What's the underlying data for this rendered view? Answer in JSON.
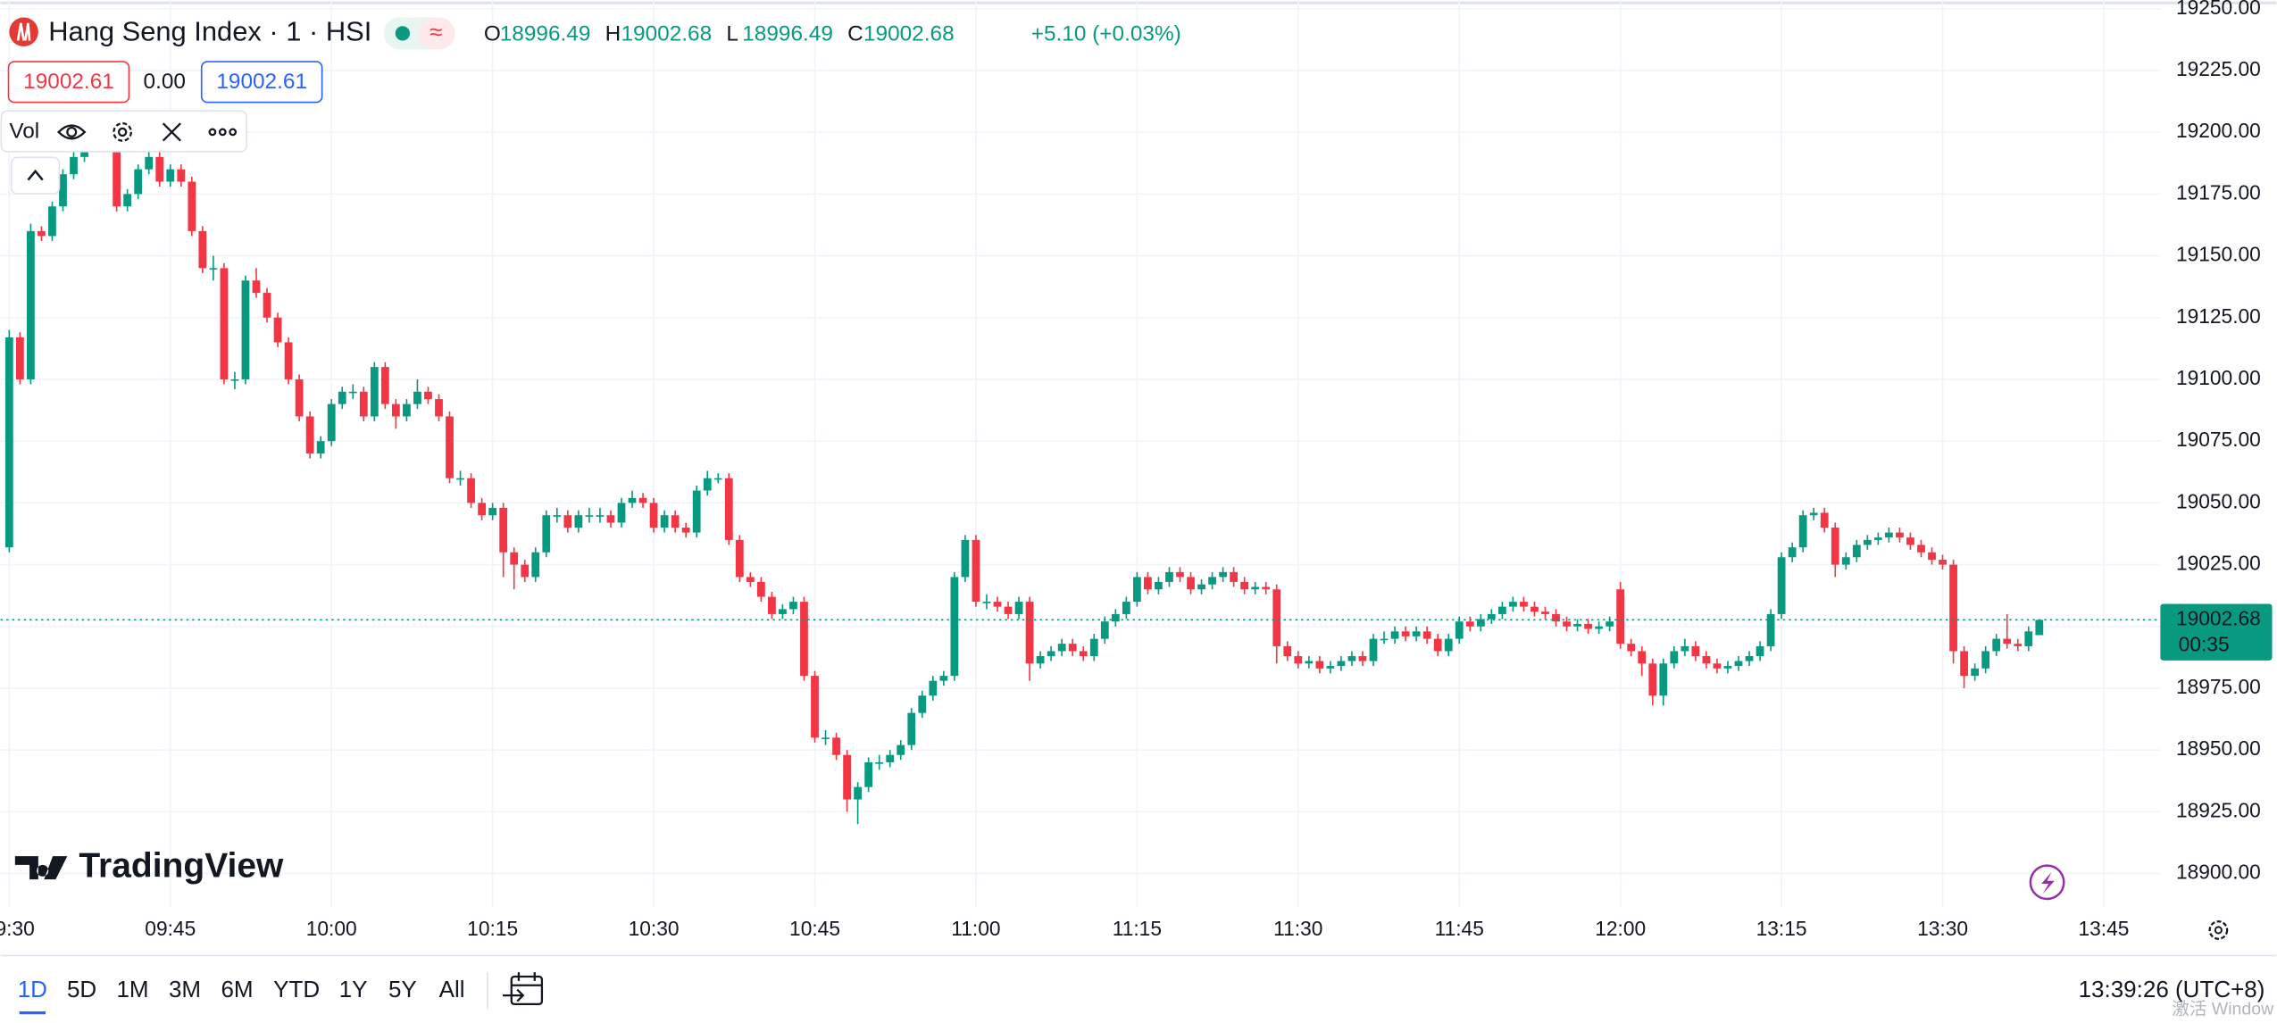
{
  "header": {
    "title": "Hang Seng Index · 1 · HSI",
    "ohlc": [
      {
        "label": "O",
        "value": "18996.49"
      },
      {
        "label": "H",
        "value": "19002.68"
      },
      {
        "label": "L",
        "value": "18996.49"
      },
      {
        "label": "C",
        "value": "19002.68"
      }
    ],
    "change": "+5.10 (+0.03%)",
    "sell_price": "19002.61",
    "spread": "0.00",
    "buy_price": "19002.61",
    "indicator": "Vol"
  },
  "logo": "TradingView",
  "timeframes": [
    "1D",
    "5D",
    "1M",
    "3M",
    "6M",
    "YTD",
    "1Y",
    "5Y",
    "All"
  ],
  "clock": "13:39:26 (UTC+8)",
  "watermark": "激活 Window",
  "chart_data": {
    "type": "candlestick",
    "up_color": "#089981",
    "down_color": "#f23645",
    "grid": true,
    "ylim": [
      18900,
      19250
    ],
    "yticks": [
      {
        "value": 18900,
        "label": "18900.00"
      },
      {
        "value": 18925,
        "label": "18925.00"
      },
      {
        "value": 18950,
        "label": "18950.00"
      },
      {
        "value": 18975,
        "label": "18975.00"
      },
      {
        "value": 19000,
        "label": "19000.00"
      },
      {
        "value": 19025,
        "label": "19025.00"
      },
      {
        "value": 19050,
        "label": "19050.00"
      },
      {
        "value": 19075,
        "label": "19075.00"
      },
      {
        "value": 19100,
        "label": "19100.00"
      },
      {
        "value": 19125,
        "label": "19125.00"
      },
      {
        "value": 19150,
        "label": "19150.00"
      },
      {
        "value": 19175,
        "label": "19175.00"
      },
      {
        "value": 19200,
        "label": "19200.00"
      },
      {
        "value": 19225,
        "label": "19225.00"
      },
      {
        "value": 19250,
        "label": "19250.00"
      }
    ],
    "last_price": {
      "value": 19002.68,
      "label": "19002.68",
      "countdown": "00:35"
    },
    "categories": [
      "09:30",
      null,
      null,
      null,
      null,
      null,
      null,
      null,
      null,
      null,
      null,
      null,
      null,
      null,
      null,
      "09:45",
      null,
      null,
      null,
      null,
      null,
      null,
      null,
      null,
      null,
      null,
      null,
      null,
      null,
      null,
      "10:00",
      null,
      null,
      null,
      null,
      null,
      null,
      null,
      null,
      null,
      null,
      null,
      null,
      null,
      null,
      "10:15",
      null,
      null,
      null,
      null,
      null,
      null,
      null,
      null,
      null,
      null,
      null,
      null,
      null,
      null,
      "10:30",
      null,
      null,
      null,
      null,
      null,
      null,
      null,
      null,
      null,
      null,
      null,
      null,
      null,
      null,
      "10:45",
      null,
      null,
      null,
      null,
      null,
      null,
      null,
      null,
      null,
      null,
      null,
      null,
      null,
      null,
      "11:00",
      null,
      null,
      null,
      null,
      null,
      null,
      null,
      null,
      null,
      null,
      null,
      null,
      null,
      null,
      "11:15",
      null,
      null,
      null,
      null,
      null,
      null,
      null,
      null,
      null,
      null,
      null,
      null,
      null,
      null,
      "11:30",
      null,
      null,
      null,
      null,
      null,
      null,
      null,
      null,
      null,
      null,
      null,
      null,
      null,
      null,
      "11:45",
      null,
      null,
      null,
      null,
      null,
      null,
      null,
      null,
      null,
      null,
      null,
      null,
      null,
      null,
      "12:00",
      null,
      null,
      null,
      null,
      null,
      null,
      null,
      null,
      null,
      null,
      null,
      null,
      null,
      null,
      "13:15",
      null,
      null,
      null,
      null,
      null,
      null,
      null,
      null,
      null,
      null,
      null,
      null,
      null,
      null,
      "13:30",
      null,
      null,
      null,
      null,
      null,
      null,
      null,
      null,
      null,
      null,
      null,
      null,
      null,
      null,
      "13:45"
    ],
    "ohlc": [
      [
        19032,
        19120,
        19030,
        19117
      ],
      [
        19117,
        19119,
        19098,
        19100
      ],
      [
        19100,
        19163,
        19098,
        19160
      ],
      [
        19160,
        19162,
        19156,
        19158
      ],
      [
        19158,
        19172,
        19156,
        19170
      ],
      [
        19170,
        19185,
        19168,
        19183
      ],
      [
        19183,
        19192,
        19181,
        19190
      ],
      [
        19190,
        19202,
        19188,
        19200
      ],
      [
        19200,
        19207,
        19198,
        19205
      ],
      [
        19205,
        19207,
        19193,
        19195
      ],
      [
        19195,
        19197,
        19168,
        19170
      ],
      [
        19170,
        19177,
        19168,
        19175
      ],
      [
        19175,
        19187,
        19173,
        19185
      ],
      [
        19185,
        19192,
        19183,
        19190
      ],
      [
        19190,
        19192,
        19178,
        19180
      ],
      [
        19180,
        19187,
        19178,
        19185
      ],
      [
        19185,
        19187,
        19178,
        19180
      ],
      [
        19180,
        19182,
        19158,
        19160
      ],
      [
        19160,
        19162,
        19143,
        19145
      ],
      [
        19145,
        19150,
        19140,
        19145
      ],
      [
        19145,
        19147,
        19098,
        19100
      ],
      [
        19100,
        19103,
        19096,
        19100
      ],
      [
        19100,
        19142,
        19098,
        19140
      ],
      [
        19140,
        19145,
        19133,
        19135
      ],
      [
        19135,
        19137,
        19123,
        19125
      ],
      [
        19125,
        19127,
        19113,
        19115
      ],
      [
        19115,
        19117,
        19098,
        19100
      ],
      [
        19100,
        19102,
        19083,
        19085
      ],
      [
        19085,
        19087,
        19068,
        19070
      ],
      [
        19070,
        19077,
        19068,
        19075
      ],
      [
        19075,
        19092,
        19073,
        19090
      ],
      [
        19090,
        19097,
        19088,
        19095
      ],
      [
        19095,
        19098,
        19092,
        19095
      ],
      [
        19095,
        19097,
        19083,
        19085
      ],
      [
        19085,
        19107,
        19083,
        19105
      ],
      [
        19105,
        19107,
        19088,
        19090
      ],
      [
        19090,
        19092,
        19080,
        19085
      ],
      [
        19085,
        19092,
        19083,
        19090
      ],
      [
        19090,
        19100,
        19088,
        19095
      ],
      [
        19095,
        19097,
        19090,
        19092
      ],
      [
        19092,
        19094,
        19083,
        19085
      ],
      [
        19085,
        19087,
        19058,
        19060
      ],
      [
        19060,
        19063,
        19057,
        19060
      ],
      [
        19060,
        19062,
        19048,
        19050
      ],
      [
        19050,
        19052,
        19043,
        19045
      ],
      [
        19045,
        19050,
        19043,
        19048
      ],
      [
        19048,
        19050,
        19020,
        19030
      ],
      [
        19030,
        19032,
        19015,
        19025
      ],
      [
        19025,
        19027,
        19018,
        19020
      ],
      [
        19020,
        19032,
        19018,
        19030
      ],
      [
        19030,
        19047,
        19028,
        19045
      ],
      [
        19045,
        19048,
        19042,
        19045
      ],
      [
        19045,
        19047,
        19038,
        19040
      ],
      [
        19040,
        19047,
        19038,
        19045
      ],
      [
        19045,
        19048,
        19042,
        19045
      ],
      [
        19045,
        19048,
        19042,
        19045
      ],
      [
        19045,
        19047,
        19040,
        19042
      ],
      [
        19042,
        19052,
        19040,
        19050
      ],
      [
        19050,
        19055,
        19048,
        19052
      ],
      [
        19052,
        19054,
        19048,
        19050
      ],
      [
        19050,
        19052,
        19038,
        19040
      ],
      [
        19040,
        19047,
        19038,
        19045
      ],
      [
        19045,
        19047,
        19038,
        19040
      ],
      [
        19040,
        19042,
        19036,
        19038
      ],
      [
        19038,
        19057,
        19036,
        19055
      ],
      [
        19055,
        19063,
        19053,
        19060
      ],
      [
        19060,
        19062,
        19058,
        19060
      ],
      [
        19060,
        19062,
        19033,
        19035
      ],
      [
        19035,
        19037,
        19018,
        19020
      ],
      [
        19020,
        19022,
        19016,
        19018
      ],
      [
        19018,
        19020,
        19010,
        19012
      ],
      [
        19012,
        19014,
        19003,
        19005
      ],
      [
        19005,
        19009,
        19003,
        19007
      ],
      [
        19007,
        19012,
        19005,
        19010
      ],
      [
        19010,
        19012,
        18978,
        18980
      ],
      [
        18980,
        18982,
        18953,
        18955
      ],
      [
        18955,
        18958,
        18952,
        18955
      ],
      [
        18955,
        18957,
        18946,
        18948
      ],
      [
        18948,
        18950,
        18925,
        18930
      ],
      [
        18930,
        18937,
        18920,
        18935
      ],
      [
        18935,
        18947,
        18933,
        18945
      ],
      [
        18945,
        18948,
        18942,
        18945
      ],
      [
        18945,
        18950,
        18943,
        18948
      ],
      [
        18948,
        18954,
        18946,
        18952
      ],
      [
        18952,
        18967,
        18950,
        18965
      ],
      [
        18965,
        18974,
        18963,
        18972
      ],
      [
        18972,
        18980,
        18970,
        18978
      ],
      [
        18978,
        18982,
        18976,
        18980
      ],
      [
        18980,
        19022,
        18978,
        19020
      ],
      [
        19020,
        19037,
        19018,
        19035
      ],
      [
        19035,
        19037,
        19008,
        19010
      ],
      [
        19010,
        19013,
        19007,
        19010
      ],
      [
        19010,
        19012,
        19006,
        19008
      ],
      [
        19008,
        19010,
        19003,
        19005
      ],
      [
        19005,
        19012,
        19003,
        19010
      ],
      [
        19010,
        19012,
        18978,
        18985
      ],
      [
        18985,
        18990,
        18983,
        18988
      ],
      [
        18988,
        18992,
        18986,
        18990
      ],
      [
        18990,
        18995,
        18988,
        18993
      ],
      [
        18993,
        18995,
        18988,
        18990
      ],
      [
        18990,
        18992,
        18986,
        18988
      ],
      [
        18988,
        18997,
        18986,
        18995
      ],
      [
        18995,
        19004,
        18993,
        19002
      ],
      [
        19002,
        19007,
        19000,
        19005
      ],
      [
        19005,
        19012,
        19003,
        19010
      ],
      [
        19010,
        19022,
        19008,
        19020
      ],
      [
        19020,
        19022,
        19013,
        19015
      ],
      [
        19015,
        19020,
        19013,
        19018
      ],
      [
        19018,
        19024,
        19016,
        19022
      ],
      [
        19022,
        19024,
        19018,
        19020
      ],
      [
        19020,
        19022,
        19013,
        19015
      ],
      [
        19015,
        19019,
        19013,
        19017
      ],
      [
        19017,
        19022,
        19015,
        19020
      ],
      [
        19020,
        19024,
        19018,
        19022
      ],
      [
        19022,
        19024,
        19016,
        19018
      ],
      [
        19018,
        19020,
        19013,
        19015
      ],
      [
        19015,
        19018,
        19013,
        19016
      ],
      [
        19016,
        19018,
        19013,
        19015
      ],
      [
        19015,
        19017,
        18985,
        18992
      ],
      [
        18992,
        18994,
        18986,
        18988
      ],
      [
        18988,
        18990,
        18983,
        18985
      ],
      [
        18985,
        18988,
        18983,
        18986
      ],
      [
        18986,
        18988,
        18981,
        18983
      ],
      [
        18983,
        18986,
        18981,
        18984
      ],
      [
        18984,
        18988,
        18982,
        18986
      ],
      [
        18986,
        18990,
        18984,
        18988
      ],
      [
        18988,
        18990,
        18984,
        18986
      ],
      [
        18986,
        18997,
        18984,
        18995
      ],
      [
        18995,
        18998,
        18993,
        18995
      ],
      [
        18995,
        19000,
        18993,
        18998
      ],
      [
        18998,
        19000,
        18994,
        18996
      ],
      [
        18996,
        19000,
        18994,
        18998
      ],
      [
        18998,
        19000,
        18993,
        18995
      ],
      [
        18995,
        18997,
        18988,
        18990
      ],
      [
        18990,
        18997,
        18988,
        18995
      ],
      [
        18995,
        19004,
        18993,
        19002
      ],
      [
        19002,
        19004,
        18998,
        19000
      ],
      [
        19000,
        19005,
        18998,
        19003
      ],
      [
        19003,
        19007,
        19001,
        19005
      ],
      [
        19005,
        19010,
        19003,
        19008
      ],
      [
        19008,
        19012,
        19006,
        19010
      ],
      [
        19010,
        19012,
        19006,
        19008
      ],
      [
        19008,
        19010,
        19004,
        19006
      ],
      [
        19006,
        19008,
        19003,
        19005
      ],
      [
        19005,
        19007,
        19000,
        19002
      ],
      [
        19002,
        19004,
        18998,
        19000
      ],
      [
        19000,
        19003,
        18998,
        19001
      ],
      [
        19001,
        19003,
        18997,
        18999
      ],
      [
        18999,
        19002,
        18997,
        19000
      ],
      [
        19000,
        19004,
        18998,
        19002
      ],
      [
        19015,
        19018,
        18991,
        18993
      ],
      [
        18993,
        18995,
        18988,
        18990
      ],
      [
        18990,
        18992,
        18980,
        18985
      ],
      [
        18985,
        18987,
        18968,
        18972
      ],
      [
        18972,
        18987,
        18968,
        18985
      ],
      [
        18985,
        18992,
        18983,
        18990
      ],
      [
        18990,
        18995,
        18988,
        18992
      ],
      [
        18992,
        18994,
        18986,
        18988
      ],
      [
        18988,
        18990,
        18983,
        18985
      ],
      [
        18985,
        18987,
        18981,
        18983
      ],
      [
        18983,
        18986,
        18981,
        18984
      ],
      [
        18984,
        18988,
        18982,
        18986
      ],
      [
        18986,
        18990,
        18984,
        18988
      ],
      [
        18988,
        18994,
        18986,
        18992
      ],
      [
        18992,
        19007,
        18990,
        19005
      ],
      [
        19005,
        19030,
        19003,
        19028
      ],
      [
        19028,
        19034,
        19026,
        19032
      ],
      [
        19032,
        19047,
        19030,
        19045
      ],
      [
        19045,
        19048,
        19043,
        19046
      ],
      [
        19046,
        19048,
        19038,
        19040
      ],
      [
        19040,
        19042,
        19020,
        19025
      ],
      [
        19025,
        19030,
        19023,
        19028
      ],
      [
        19028,
        19035,
        19026,
        19033
      ],
      [
        19033,
        19037,
        19031,
        19035
      ],
      [
        19035,
        19038,
        19033,
        19036
      ],
      [
        19036,
        19040,
        19034,
        19038
      ],
      [
        19038,
        19040,
        19034,
        19036
      ],
      [
        19036,
        19038,
        19031,
        19033
      ],
      [
        19033,
        19035,
        19028,
        19030
      ],
      [
        19030,
        19032,
        19025,
        19027
      ],
      [
        19027,
        19029,
        19023,
        19025
      ],
      [
        19025,
        19027,
        18985,
        18990
      ],
      [
        18990,
        18992,
        18975,
        18980
      ],
      [
        18980,
        18985,
        18978,
        18983
      ],
      [
        18983,
        18992,
        18981,
        18990
      ],
      [
        18990,
        18997,
        18988,
        18995
      ],
      [
        18995,
        19005,
        18991,
        18993
      ],
      [
        18993,
        18995,
        18990,
        18992
      ],
      [
        18992,
        19000,
        18990,
        18998
      ],
      [
        18996.49,
        19002.68,
        18996.49,
        19002.68
      ],
      null,
      null,
      null,
      null,
      null,
      null
    ]
  }
}
